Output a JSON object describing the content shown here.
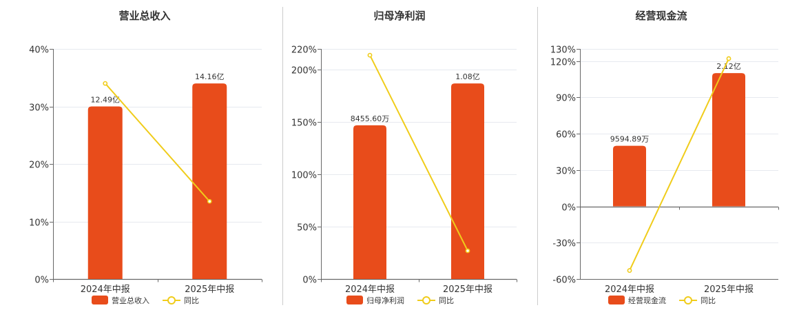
{
  "colors": {
    "bar": "#e84c1b",
    "line": "#f0cc1a",
    "grid": "#e6e9ef",
    "axis": "#666666",
    "divider": "#cccccc"
  },
  "chart_data": [
    {
      "type": "bar",
      "title": "营业总收入",
      "categories": [
        "2024年中报",
        "2025年中报"
      ],
      "ylim": [
        0,
        40
      ],
      "yticks": [
        0,
        10,
        20,
        30,
        40
      ],
      "ytick_labels": [
        "0%",
        "10%",
        "20%",
        "30%",
        "40%"
      ],
      "series": [
        {
          "name": "营业总收入",
          "kind": "bar",
          "values": [
            30,
            34
          ],
          "labels": [
            "12.49亿",
            "14.16亿"
          ]
        },
        {
          "name": "同比",
          "kind": "line",
          "values": [
            34,
            13.5
          ]
        }
      ]
    },
    {
      "type": "bar",
      "title": "归母净利润",
      "categories": [
        "2024年中报",
        "2025年中报"
      ],
      "ylim": [
        0,
        220
      ],
      "yticks": [
        0,
        50,
        100,
        150,
        200,
        220
      ],
      "ytick_labels": [
        "0%",
        "50%",
        "100%",
        "150%",
        "200%",
        "220%"
      ],
      "series": [
        {
          "name": "归母净利润",
          "kind": "bar",
          "values": [
            147,
            187
          ],
          "labels": [
            "8455.60万",
            "1.08亿"
          ]
        },
        {
          "name": "同比",
          "kind": "line",
          "values": [
            214,
            27
          ]
        }
      ]
    },
    {
      "type": "bar",
      "title": "经营现金流",
      "categories": [
        "2024年中报",
        "2025年中报"
      ],
      "ylim": [
        -60,
        130
      ],
      "yticks": [
        -60,
        -30,
        0,
        30,
        60,
        90,
        120,
        130
      ],
      "ytick_labels": [
        "-60%",
        "-30%",
        "0%",
        "30%",
        "60%",
        "90%",
        "120%",
        "130%"
      ],
      "series": [
        {
          "name": "经营现金流",
          "kind": "bar",
          "values": [
            50,
            110
          ],
          "labels": [
            "9594.89万",
            "2.12亿"
          ]
        },
        {
          "name": "同比",
          "kind": "line",
          "values": [
            -53,
            122
          ]
        }
      ]
    }
  ]
}
